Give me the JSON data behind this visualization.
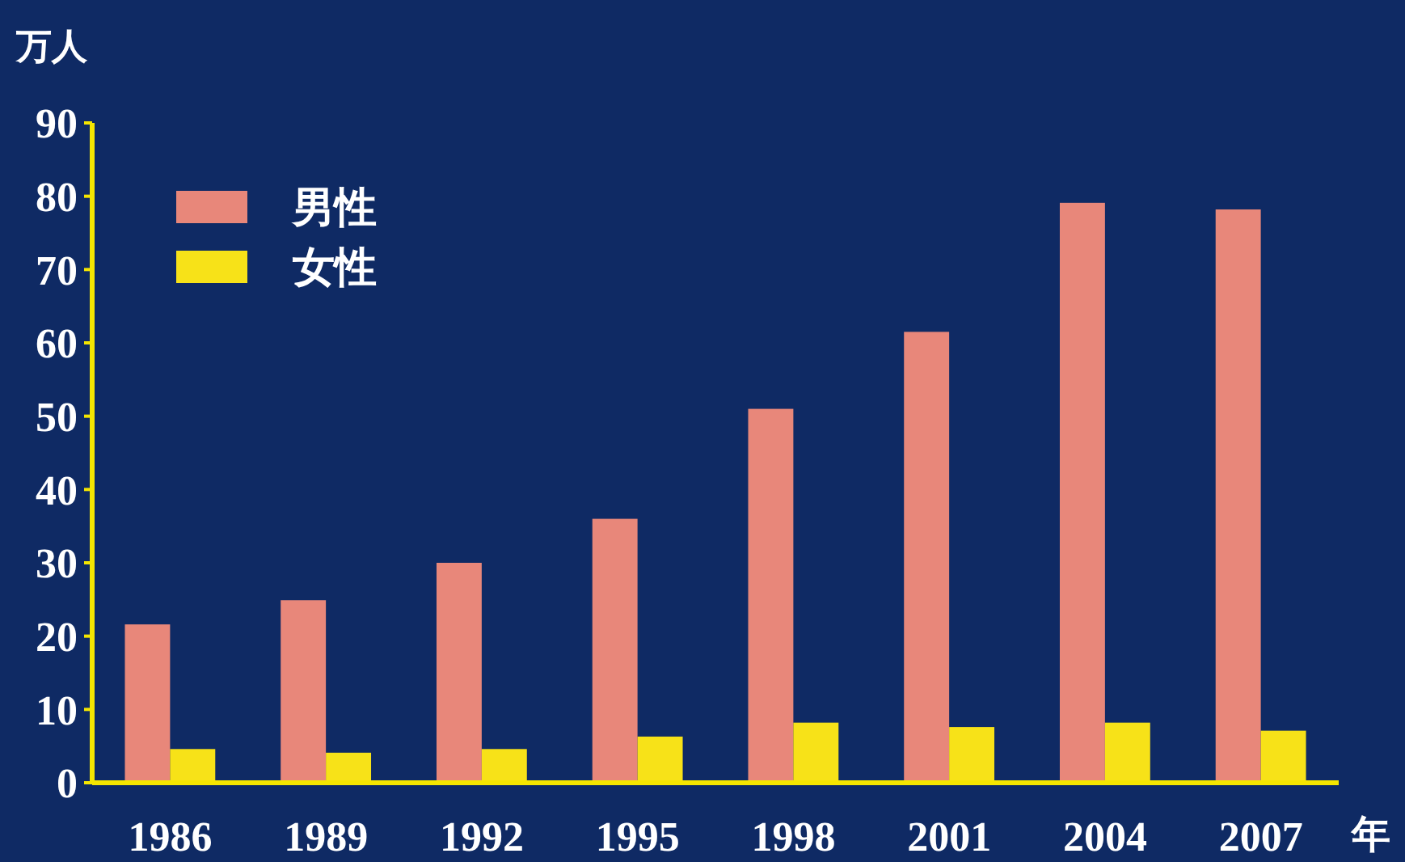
{
  "chart_data": {
    "type": "bar",
    "xlabel": "年",
    "ylabel": "万人",
    "categories": [
      "1986",
      "1989",
      "1992",
      "1995",
      "1998",
      "2001",
      "2004",
      "2007"
    ],
    "series": [
      {
        "name": "男性",
        "color": "#e8877a",
        "values": [
          21.6,
          24.9,
          30,
          36,
          51,
          61.5,
          79.1,
          78.2
        ]
      },
      {
        "name": "女性",
        "color": "#f7e218",
        "values": [
          4.6,
          4.1,
          4.6,
          6.3,
          8.2,
          7.6,
          8.2,
          7.1
        ]
      }
    ],
    "ylim": [
      0,
      90
    ],
    "yticks": [
      0,
      10,
      20,
      30,
      40,
      50,
      60,
      70,
      80,
      90
    ],
    "grid": false,
    "legend": "top left"
  }
}
